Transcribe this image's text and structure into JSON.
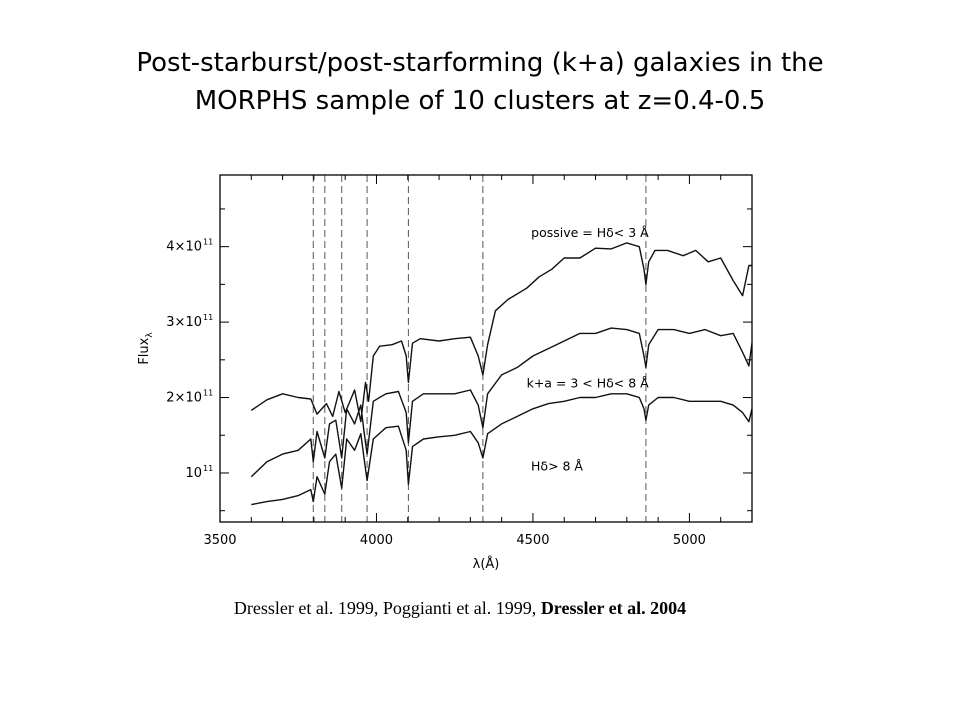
{
  "title": {
    "line1": "Post-starburst/post-starforming (k+a) galaxies in the",
    "line2": "MORPHS sample of 10 clusters at z=0.4-0.5"
  },
  "caption": {
    "part1": "Dressler et al. 1999, Poggianti et al. 1999, ",
    "part2": "Dressler et al. 2004"
  },
  "chart_data": {
    "type": "line",
    "xlabel": "λ(Å)",
    "ylabel": "Flux",
    "ylabel_subscript": "λ",
    "xlim": [
      3500,
      5200
    ],
    "ylim": [
      0.35,
      4.95
    ],
    "y_unit": "×10^11",
    "x_ticks": [
      3500,
      4000,
      4500,
      5000
    ],
    "y_ticks": [
      {
        "value": 1,
        "label": "10",
        "exp": "11"
      },
      {
        "value": 2,
        "label": "2×10",
        "exp": "11"
      },
      {
        "value": 3,
        "label": "3×10",
        "exp": "11"
      },
      {
        "value": 4,
        "label": "4×10",
        "exp": "11"
      }
    ],
    "reference_lines_x": [
      3798,
      3835,
      3889,
      3970,
      4102,
      4340,
      4861
    ],
    "annotations": [
      {
        "text": "possive = Hδ< 3 Å",
        "x": 4870,
        "y": 4.13
      },
      {
        "text": "k+a = 3 < Hδ< 8 Å",
        "x": 4870,
        "y": 2.13
      },
      {
        "text": "Hδ> 8 Å",
        "x": 4660,
        "y": 1.03
      }
    ],
    "series": [
      {
        "x": [
          3600,
          3650,
          3700,
          3750,
          3790,
          3810,
          3840,
          3860,
          3880,
          3900,
          3930,
          3950,
          3965,
          3975,
          3990,
          4010,
          4050,
          4080,
          4095,
          4102,
          4115,
          4140,
          4200,
          4250,
          4300,
          4325,
          4340,
          4355,
          4380,
          4420,
          4480,
          4520,
          4560,
          4600,
          4650,
          4700,
          4750,
          4800,
          4840,
          4855,
          4861,
          4870,
          4890,
          4930,
          4980,
          5020,
          5060,
          5100,
          5140,
          5170,
          5190,
          5200
        ],
        "y": [
          1.83,
          1.97,
          2.05,
          2.0,
          1.98,
          1.78,
          1.92,
          1.75,
          2.08,
          1.8,
          2.1,
          1.68,
          2.2,
          1.95,
          2.55,
          2.68,
          2.7,
          2.75,
          2.55,
          2.2,
          2.72,
          2.78,
          2.75,
          2.78,
          2.8,
          2.55,
          2.3,
          2.7,
          3.15,
          3.3,
          3.45,
          3.6,
          3.7,
          3.85,
          3.85,
          3.98,
          3.97,
          4.05,
          4.0,
          3.7,
          3.5,
          3.8,
          3.95,
          3.95,
          3.88,
          3.95,
          3.8,
          3.85,
          3.55,
          3.35,
          3.75,
          3.75
        ]
      },
      {
        "x": [
          3600,
          3650,
          3700,
          3750,
          3790,
          3798,
          3810,
          3835,
          3850,
          3870,
          3889,
          3905,
          3930,
          3950,
          3960,
          3970,
          3990,
          4030,
          4070,
          4095,
          4102,
          4115,
          4150,
          4200,
          4250,
          4300,
          4325,
          4340,
          4355,
          4400,
          4450,
          4500,
          4550,
          4600,
          4650,
          4700,
          4750,
          4800,
          4840,
          4855,
          4861,
          4870,
          4900,
          4950,
          5000,
          5050,
          5100,
          5140,
          5170,
          5190,
          5200
        ],
        "y": [
          0.95,
          1.15,
          1.25,
          1.3,
          1.45,
          1.15,
          1.55,
          1.2,
          1.65,
          1.7,
          1.2,
          1.85,
          1.65,
          1.9,
          1.55,
          1.25,
          1.95,
          2.05,
          2.08,
          1.8,
          1.4,
          1.95,
          2.05,
          2.05,
          2.05,
          2.1,
          1.9,
          1.6,
          2.05,
          2.3,
          2.4,
          2.55,
          2.65,
          2.75,
          2.85,
          2.85,
          2.92,
          2.9,
          2.85,
          2.55,
          2.4,
          2.7,
          2.9,
          2.9,
          2.85,
          2.9,
          2.82,
          2.85,
          2.6,
          2.42,
          2.72
        ]
      },
      {
        "x": [
          3600,
          3650,
          3700,
          3750,
          3790,
          3798,
          3810,
          3835,
          3850,
          3870,
          3889,
          3905,
          3930,
          3950,
          3960,
          3970,
          3990,
          4030,
          4070,
          4095,
          4102,
          4115,
          4150,
          4200,
          4250,
          4300,
          4325,
          4340,
          4355,
          4400,
          4450,
          4500,
          4550,
          4600,
          4650,
          4700,
          4750,
          4800,
          4840,
          4855,
          4861,
          4870,
          4900,
          4950,
          5000,
          5050,
          5100,
          5140,
          5170,
          5190,
          5200
        ],
        "y": [
          0.58,
          0.62,
          0.65,
          0.7,
          0.78,
          0.62,
          0.95,
          0.72,
          1.15,
          1.25,
          0.8,
          1.45,
          1.3,
          1.52,
          1.2,
          0.9,
          1.45,
          1.6,
          1.62,
          1.3,
          0.85,
          1.35,
          1.45,
          1.48,
          1.5,
          1.55,
          1.4,
          1.2,
          1.52,
          1.65,
          1.75,
          1.85,
          1.92,
          1.95,
          2.0,
          2.0,
          2.05,
          2.05,
          2.0,
          1.85,
          1.7,
          1.9,
          2.0,
          2.0,
          1.95,
          1.95,
          1.95,
          1.9,
          1.8,
          1.68,
          1.85
        ]
      }
    ]
  }
}
